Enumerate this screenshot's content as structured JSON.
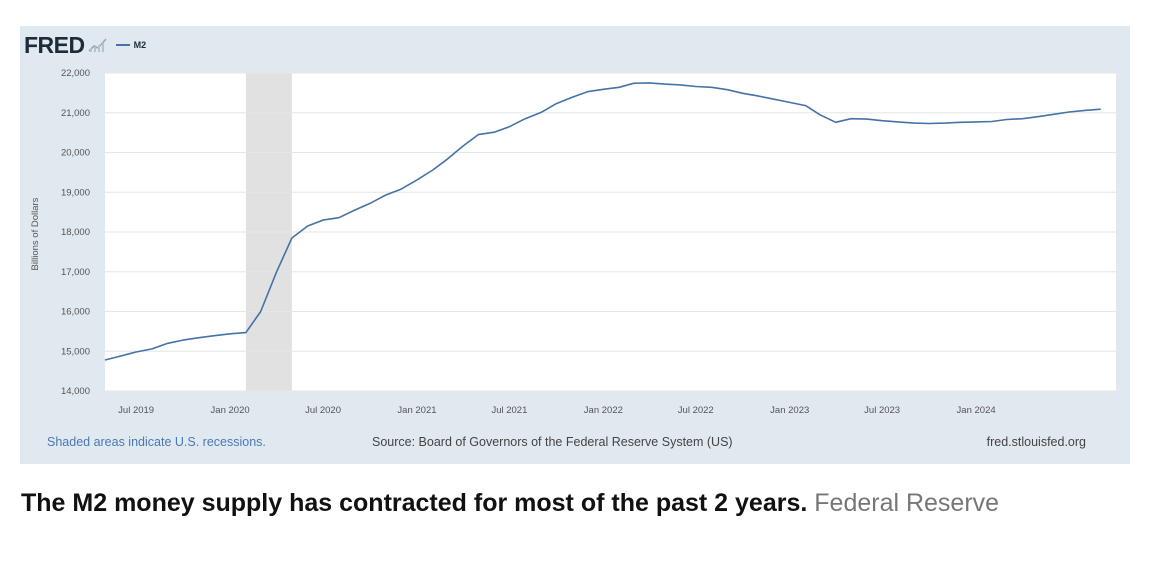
{
  "logo": {
    "text": "FRED"
  },
  "legend": {
    "series_label": "M2",
    "line_color": "#4572a7"
  },
  "footer": {
    "recessions_note": "Shaded areas indicate U.S. recessions.",
    "source": "Source: Board of Governors of the Federal Reserve System (US)",
    "site": "fred.stlouisfed.org"
  },
  "caption": {
    "text": "The M2 money supply has contracted for most of the past 2 years.",
    "credit": "Federal Reserve"
  },
  "colors": {
    "panel_background": "#e1e9f0",
    "plot_background": "#ffffff",
    "line": "#4572a7",
    "recession_shade": "#e1e1e1",
    "grid": "#e6e6e6",
    "footer_link": "#4a78b5"
  },
  "chart_data": {
    "type": "line",
    "title": "",
    "xlabel": "",
    "ylabel": "Billions of Dollars",
    "ylim": [
      14000,
      22000
    ],
    "xlim": [
      "2019-05-01",
      "2024-10-01"
    ],
    "yticks": [
      14000,
      15000,
      16000,
      17000,
      18000,
      19000,
      20000,
      21000,
      22000
    ],
    "ytick_labels": [
      "14,000",
      "15,000",
      "16,000",
      "17,000",
      "18,000",
      "19,000",
      "20,000",
      "21,000",
      "22,000"
    ],
    "xticks": [
      "2019-07-01",
      "2020-01-01",
      "2020-07-01",
      "2021-01-01",
      "2021-07-01",
      "2022-01-01",
      "2022-07-01",
      "2023-01-01",
      "2023-07-01",
      "2024-01-01"
    ],
    "xtick_labels": [
      "Jul 2019",
      "Jan 2020",
      "Jul 2020",
      "Jan 2021",
      "Jul 2021",
      "Jan 2022",
      "Jul 2022",
      "Jan 2023",
      "Jul 2023",
      "Jan 2024"
    ],
    "grid": true,
    "recessions": [
      {
        "start": "2020-02-01",
        "end": "2020-04-01"
      }
    ],
    "series": [
      {
        "name": "M2",
        "x": [
          "2019-05-01",
          "2019-06-01",
          "2019-07-01",
          "2019-08-01",
          "2019-09-01",
          "2019-10-01",
          "2019-11-01",
          "2019-12-01",
          "2020-01-01",
          "2020-02-01",
          "2020-03-01",
          "2020-04-01",
          "2020-05-01",
          "2020-06-01",
          "2020-07-01",
          "2020-08-01",
          "2020-09-01",
          "2020-10-01",
          "2020-11-01",
          "2020-12-01",
          "2021-01-01",
          "2021-02-01",
          "2021-03-01",
          "2021-04-01",
          "2021-05-01",
          "2021-06-01",
          "2021-07-01",
          "2021-08-01",
          "2021-09-01",
          "2021-10-01",
          "2021-11-01",
          "2021-12-01",
          "2022-01-01",
          "2022-02-01",
          "2022-03-01",
          "2022-04-01",
          "2022-05-01",
          "2022-06-01",
          "2022-07-01",
          "2022-08-01",
          "2022-09-01",
          "2022-10-01",
          "2022-11-01",
          "2022-12-01",
          "2023-01-01",
          "2023-02-01",
          "2023-03-01",
          "2023-04-01",
          "2023-05-01",
          "2023-06-01",
          "2023-07-01",
          "2023-08-01",
          "2023-09-01",
          "2023-10-01",
          "2023-11-01",
          "2023-12-01",
          "2024-01-01",
          "2024-02-01",
          "2024-03-01",
          "2024-04-01",
          "2024-05-01",
          "2024-06-01",
          "2024-07-01",
          "2024-08-01",
          "2024-09-01"
        ],
        "values": [
          14780,
          14880,
          14980,
          15060,
          15200,
          15280,
          15340,
          15390,
          15440,
          15470,
          16000,
          17000,
          17850,
          18150,
          18300,
          18360,
          18550,
          18720,
          18930,
          19080,
          19310,
          19560,
          19830,
          20160,
          20450,
          20510,
          20650,
          20850,
          21010,
          21230,
          21390,
          21530,
          21590,
          21640,
          21740,
          21750,
          21720,
          21700,
          21660,
          21640,
          21580,
          21490,
          21420,
          21340,
          21260,
          21180,
          20950,
          20760,
          20850,
          20840,
          20800,
          20770,
          20740,
          20730,
          20740,
          20760,
          20770,
          20780,
          20830,
          20850,
          20900,
          20960,
          21020,
          21060,
          21090
        ]
      }
    ]
  }
}
